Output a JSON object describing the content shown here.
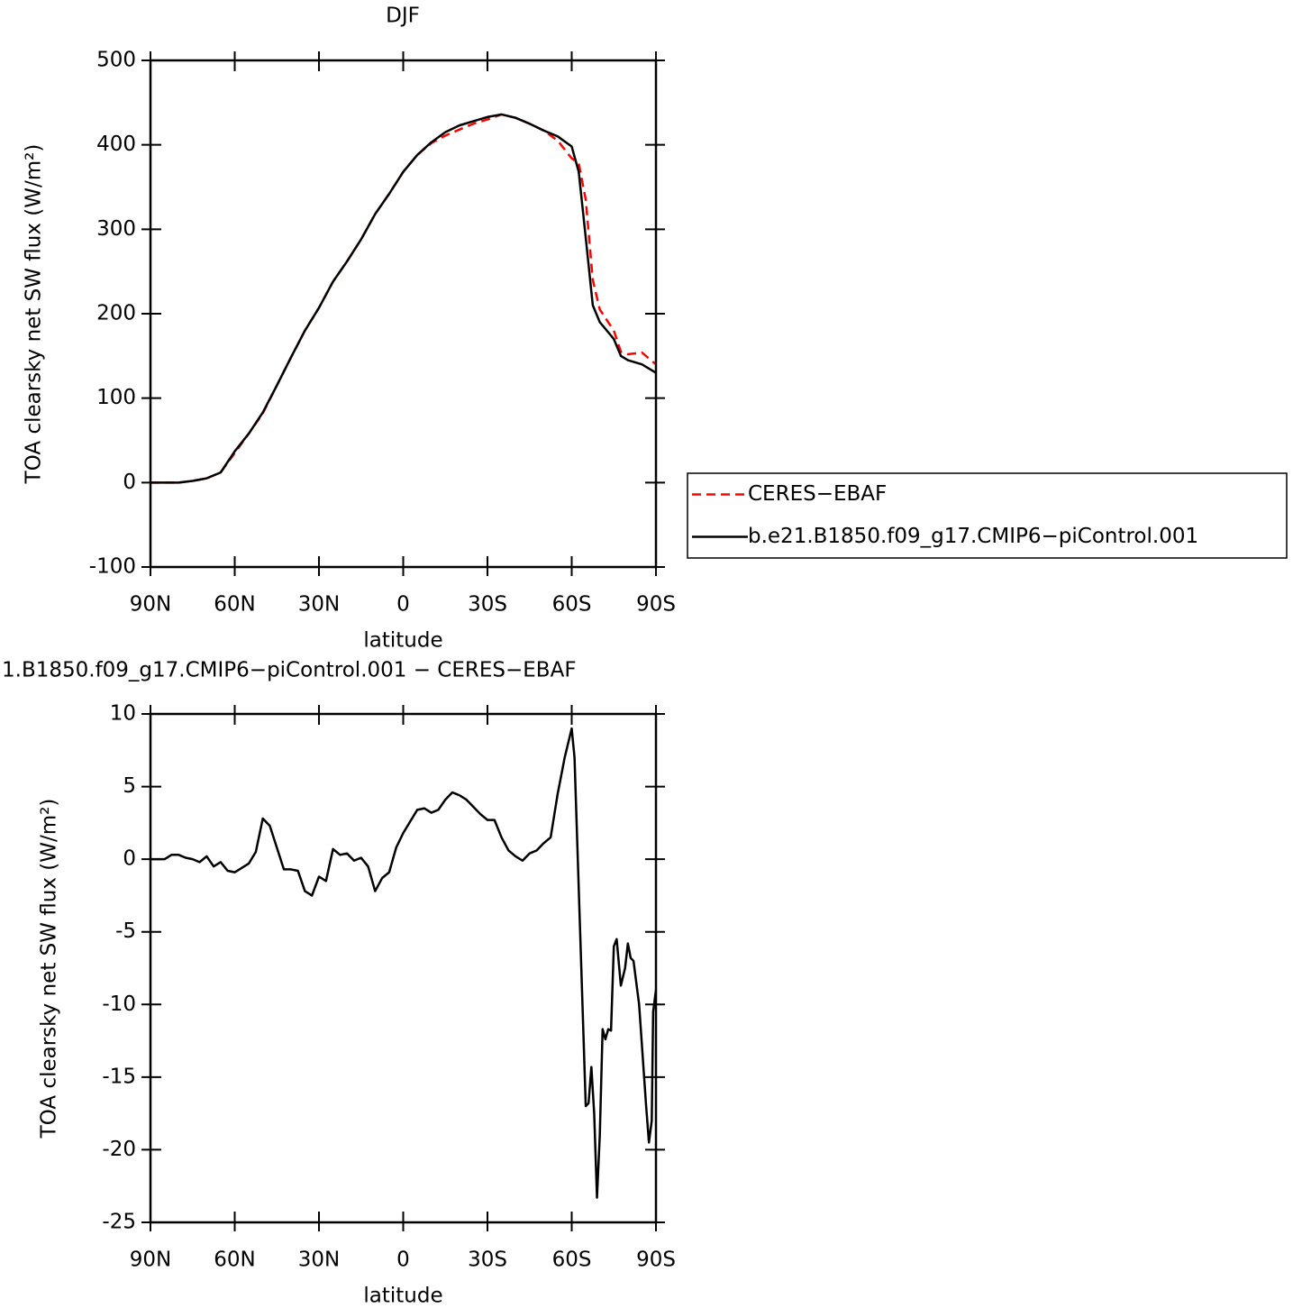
{
  "chart_data": [
    {
      "type": "line",
      "title": "DJF",
      "xlabel": "latitude",
      "ylabel": "TOA clearsky net SW flux (W/m²)",
      "x": [
        90,
        85,
        80,
        75,
        70,
        65,
        60,
        55,
        50,
        45,
        40,
        35,
        30,
        25,
        20,
        15,
        10,
        5,
        0,
        -5,
        -10,
        -15,
        -20,
        -25,
        -30,
        -35,
        -40,
        -45,
        -50,
        -55,
        -60,
        -62.5,
        -65,
        -67.5,
        -70,
        -75,
        -77.5,
        -80,
        -85,
        -90
      ],
      "series": [
        {
          "name": "CERES−EBAF",
          "color": "#ff0000",
          "line_style": "dashed",
          "values": [
            0,
            0,
            0,
            2,
            5,
            12,
            35,
            58,
            82,
            115,
            148,
            180,
            207,
            238,
            262,
            288,
            318,
            342,
            368,
            388,
            402,
            411,
            418,
            425,
            430,
            436,
            432,
            425,
            417,
            405,
            384,
            378,
            335,
            240,
            205,
            180,
            155,
            152,
            154,
            140
          ]
        },
        {
          "name": "b.e21.B1850.f09_g17.CMIP6−piControl.001",
          "color": "#000000",
          "line_style": "solid",
          "values": [
            0,
            0,
            0,
            2,
            5,
            12,
            37,
            58,
            83,
            115,
            148,
            180,
            207,
            238,
            262,
            288,
            318,
            342,
            368,
            388,
            403,
            415,
            423,
            428,
            433,
            436,
            432,
            425,
            417,
            410,
            398,
            368,
            290,
            210,
            190,
            170,
            150,
            145,
            140,
            130
          ]
        }
      ],
      "xlim": [
        90,
        -90
      ],
      "xticks": [
        {
          "value": 90,
          "label": "90N"
        },
        {
          "value": 60,
          "label": "60N"
        },
        {
          "value": 30,
          "label": "30N"
        },
        0,
        {
          "value": -30,
          "label": "30S"
        },
        {
          "value": -60,
          "label": "60S"
        },
        {
          "value": -90,
          "label": "90S"
        }
      ],
      "ylim": [
        -100,
        500
      ],
      "yticks": [
        -100,
        0,
        100,
        200,
        300,
        400,
        500
      ],
      "grid": false,
      "legend": "right"
    },
    {
      "type": "line",
      "title": "1.B1850.f09_g17.CMIP6−piControl.001 − CERES−EBAF",
      "xlabel": "latitude",
      "ylabel": "TOA clearsky net SW flux (W/m²)",
      "x": [
        90,
        85,
        82.5,
        80,
        77.5,
        75,
        72.5,
        70,
        67.5,
        65,
        62.5,
        60,
        57.5,
        55,
        52.5,
        50,
        47.5,
        45,
        42.5,
        40,
        37.5,
        35,
        32.5,
        30,
        27.5,
        25,
        22.5,
        20,
        17.5,
        15,
        12.5,
        10,
        7.5,
        5,
        2.5,
        0,
        -2.5,
        -5,
        -7.5,
        -10,
        -12.5,
        -15,
        -17.5,
        -20,
        -22.5,
        -25,
        -27.5,
        -30,
        -32.5,
        -35,
        -37.5,
        -40,
        -42.5,
        -45,
        -47.5,
        -50,
        -52.5,
        -55,
        -57.5,
        -60,
        -61,
        -63,
        -65,
        -66,
        -67,
        -68,
        -69,
        -70,
        -71,
        -72,
        -73,
        -74,
        -75,
        -76,
        -77.5,
        -79,
        -80,
        -81,
        -82,
        -84,
        -86.5,
        -87.5,
        -88.5,
        -89,
        -90
      ],
      "series": [
        {
          "color": "#000000",
          "line_style": "solid",
          "values": [
            0,
            0,
            0.3,
            0.3,
            0.1,
            0,
            -0.2,
            0.2,
            -0.5,
            -0.2,
            -0.8,
            -0.9,
            -0.6,
            -0.3,
            0.5,
            2.8,
            2.3,
            0.8,
            -0.7,
            -0.7,
            -0.8,
            -2.2,
            -2.5,
            -1.2,
            -1.5,
            0.7,
            0.3,
            0.4,
            -0.1,
            0.1,
            -0.5,
            -2.2,
            -1.3,
            -0.9,
            0.8,
            1.8,
            2.6,
            3.4,
            3.5,
            3.2,
            3.4,
            4.1,
            4.6,
            4.4,
            4.1,
            3.6,
            3.1,
            2.7,
            2.7,
            1.5,
            0.6,
            0.2,
            -0.1,
            0.4,
            0.6,
            1.1,
            1.5,
            4.5,
            7,
            9,
            7,
            -5,
            -17,
            -16.8,
            -14.3,
            -17.5,
            -23.3,
            -19,
            -11.7,
            -12.4,
            -11.7,
            -11.8,
            -6,
            -5.5,
            -8.7,
            -7.5,
            -5.8,
            -6.8,
            -7,
            -10,
            -17,
            -19.5,
            -18,
            -10.5,
            -9
          ]
        }
      ],
      "xlim": [
        90,
        -90
      ],
      "xticks": [
        {
          "value": 90,
          "label": "90N"
        },
        {
          "value": 60,
          "label": "60N"
        },
        {
          "value": 30,
          "label": "30N"
        },
        0,
        {
          "value": -30,
          "label": "30S"
        },
        {
          "value": -60,
          "label": "60S"
        },
        {
          "value": -90,
          "label": "90S"
        }
      ],
      "ylim": [
        -25,
        10
      ],
      "yticks": [
        -25,
        -20,
        -15,
        -10,
        -5,
        0,
        5,
        10
      ],
      "grid": false
    }
  ]
}
